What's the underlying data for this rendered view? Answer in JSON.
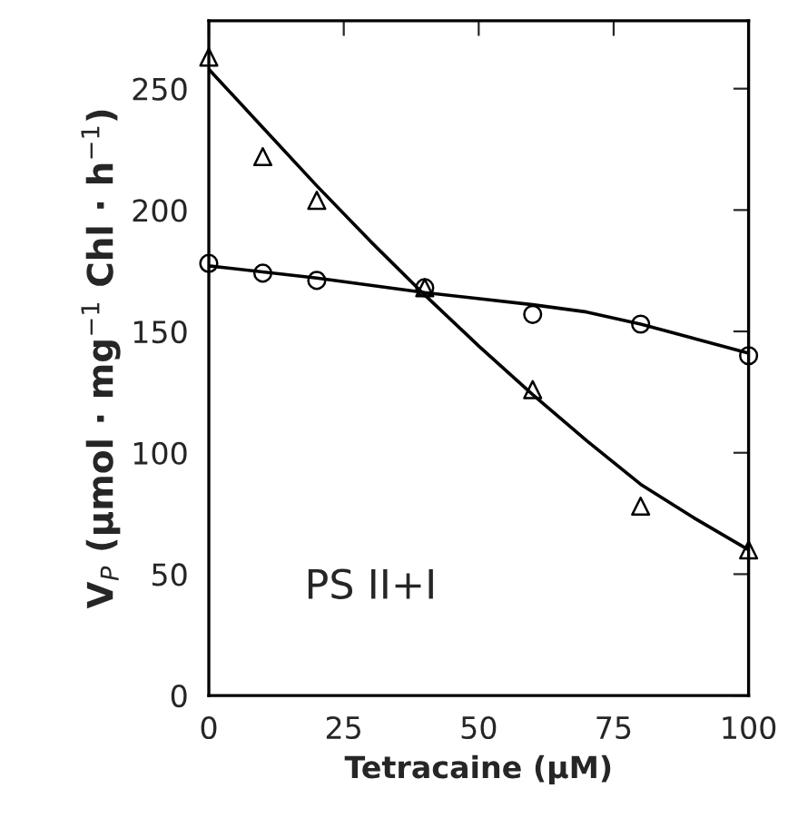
{
  "chart_data": {
    "type": "scatter",
    "xlabel": "Tetracaine (μM)",
    "ylabel": "V$_{P}$ (μmol · mg$^{−1}$ Chl · h$^{−1}$)",
    "annotations": [
      "PS II+I"
    ],
    "xlim": [
      0,
      100
    ],
    "xticks": [
      0,
      25,
      50,
      75,
      100
    ],
    "ylim": [
      0,
      278
    ],
    "yticks": [
      0,
      50,
      100,
      150,
      200,
      250
    ],
    "grid": false,
    "series": [
      {
        "marker": "triangle",
        "color": "#000000",
        "x": [
          0,
          10,
          20,
          40,
          60,
          80,
          100
        ],
        "values": [
          263,
          222,
          204,
          168,
          126,
          78,
          60
        ]
      },
      {
        "marker": "circle",
        "color": "#000000",
        "x": [
          0,
          10,
          20,
          40,
          60,
          80,
          100
        ],
        "values": [
          178,
          174,
          171,
          168,
          157,
          153,
          140
        ]
      },
      {
        "type": "line",
        "marker": "none",
        "color": "#000000",
        "x": [
          0,
          10,
          20,
          30,
          40,
          50,
          60,
          70,
          80,
          90,
          100
        ],
        "values": [
          258,
          234,
          210,
          187,
          165,
          144,
          124,
          105,
          87,
          73,
          60
        ]
      },
      {
        "type": "line",
        "marker": "none",
        "color": "#000000",
        "x": [
          0,
          20,
          40,
          60,
          70,
          80,
          90,
          100
        ],
        "values": [
          177,
          172,
          166,
          161,
          158,
          153,
          147,
          141
        ]
      }
    ]
  }
}
